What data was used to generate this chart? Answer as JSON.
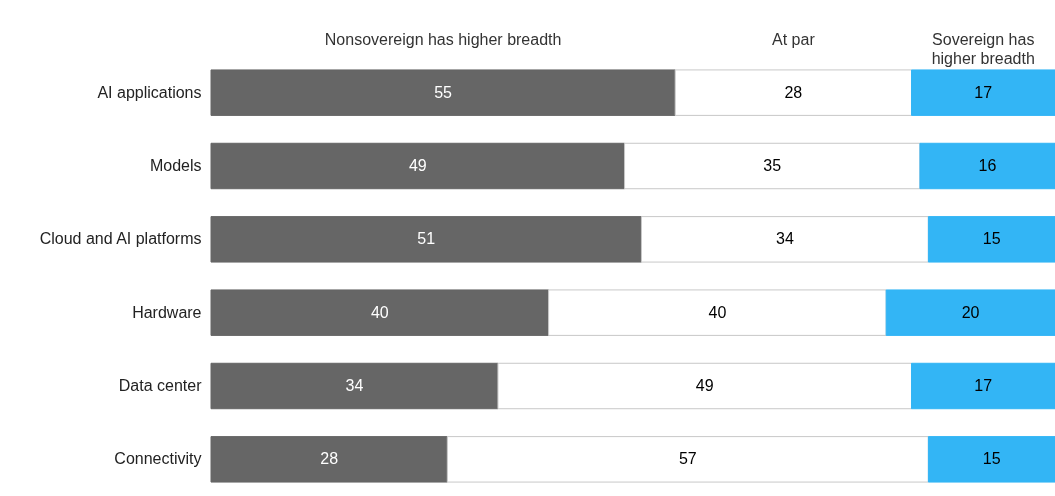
{
  "chart_data": {
    "type": "bar",
    "orientation": "horizontal",
    "stacked": true,
    "data_labels": true,
    "legend": "top",
    "tick_labels": "y",
    "categories": [
      "AI applications",
      "Models",
      "Cloud and AI platforms",
      "Hardware",
      "Data center",
      "Connectivity"
    ],
    "series": [
      {
        "name": "Nonsovereign has higher breadth",
        "color": "#666666",
        "values": [
          55,
          49,
          51,
          40,
          34,
          28
        ]
      },
      {
        "name": "At par",
        "color": "#ffffff",
        "values": [
          28,
          35,
          34,
          40,
          49,
          57
        ]
      },
      {
        "name": "Sovereign has higher breadth",
        "color": "#33b5f5",
        "values": [
          17,
          16,
          15,
          20,
          17,
          15
        ]
      }
    ]
  }
}
